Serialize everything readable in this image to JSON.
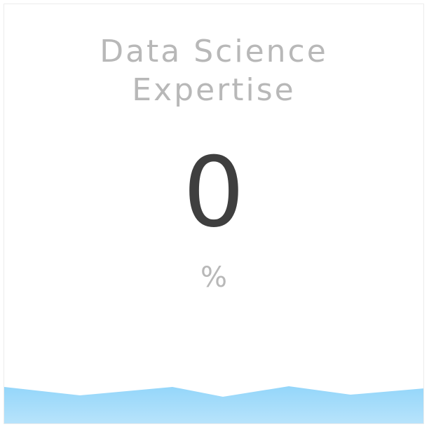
{
  "card": {
    "title": "Data Science\nExpertise",
    "value": "0",
    "unit": "%"
  },
  "progress": {
    "level_percent": 0
  },
  "colors": {
    "wave_top": "#94d6fa",
    "wave_bottom": "#b7e3fb",
    "value_text": "#3f3f3f",
    "label_text": "#b8b8b8"
  }
}
